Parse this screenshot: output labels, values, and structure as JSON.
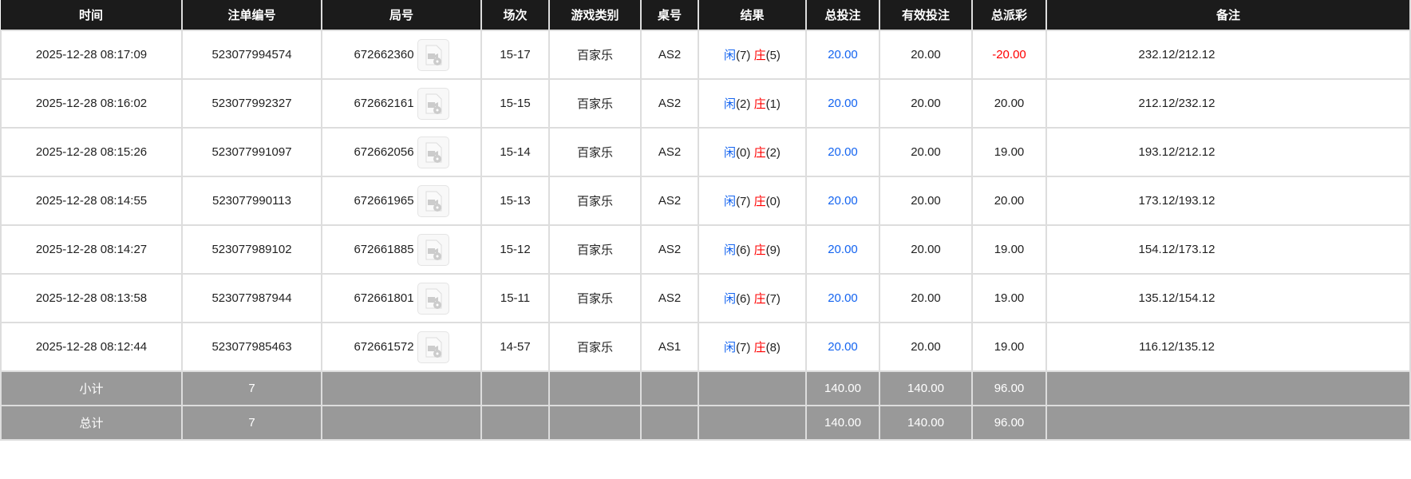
{
  "headers": [
    "时间",
    "注单编号",
    "局号",
    "场次",
    "游戏类别",
    "桌号",
    "结果",
    "总投注",
    "有效投注",
    "总派彩",
    "备注"
  ],
  "player_label": "闲",
  "banker_label": "庄",
  "rows": [
    {
      "time": "2025-12-28 08:17:09",
      "bet_id": "523077994574",
      "round": "672662360",
      "session": "15-17",
      "game": "百家乐",
      "table": "AS2",
      "player": "(7)",
      "banker": "(5)",
      "total_bet": "20.00",
      "valid_bet": "20.00",
      "payout": "-20.00",
      "payout_negative": true,
      "remark": "232.12/212.12"
    },
    {
      "time": "2025-12-28 08:16:02",
      "bet_id": "523077992327",
      "round": "672662161",
      "session": "15-15",
      "game": "百家乐",
      "table": "AS2",
      "player": "(2)",
      "banker": "(1)",
      "total_bet": "20.00",
      "valid_bet": "20.00",
      "payout": "20.00",
      "remark": "212.12/232.12"
    },
    {
      "time": "2025-12-28 08:15:26",
      "bet_id": "523077991097",
      "round": "672662056",
      "session": "15-14",
      "game": "百家乐",
      "table": "AS2",
      "player": "(0)",
      "banker": "(2)",
      "total_bet": "20.00",
      "valid_bet": "20.00",
      "payout": "19.00",
      "remark": "193.12/212.12"
    },
    {
      "time": "2025-12-28 08:14:55",
      "bet_id": "523077990113",
      "round": "672661965",
      "session": "15-13",
      "game": "百家乐",
      "table": "AS2",
      "player": "(7)",
      "banker": "(0)",
      "total_bet": "20.00",
      "valid_bet": "20.00",
      "payout": "20.00",
      "remark": "173.12/193.12"
    },
    {
      "time": "2025-12-28 08:14:27",
      "bet_id": "523077989102",
      "round": "672661885",
      "session": "15-12",
      "game": "百家乐",
      "table": "AS2",
      "player": "(6)",
      "banker": "(9)",
      "total_bet": "20.00",
      "valid_bet": "20.00",
      "payout": "19.00",
      "remark": "154.12/173.12"
    },
    {
      "time": "2025-12-28 08:13:58",
      "bet_id": "523077987944",
      "round": "672661801",
      "session": "15-11",
      "game": "百家乐",
      "table": "AS2",
      "player": "(6)",
      "banker": "(7)",
      "total_bet": "20.00",
      "valid_bet": "20.00",
      "payout": "19.00",
      "remark": "135.12/154.12"
    },
    {
      "time": "2025-12-28 08:12:44",
      "bet_id": "523077985463",
      "round": "672661572",
      "session": "14-57",
      "game": "百家乐",
      "table": "AS1",
      "player": "(7)",
      "banker": "(8)",
      "total_bet": "20.00",
      "valid_bet": "20.00",
      "payout": "19.00",
      "remark": "116.12/135.12"
    }
  ],
  "summary": [
    {
      "label": "小计",
      "count": "7",
      "total_bet": "140.00",
      "valid_bet": "140.00",
      "payout": "96.00"
    },
    {
      "label": "总计",
      "count": "7",
      "total_bet": "140.00",
      "valid_bet": "140.00",
      "payout": "96.00"
    }
  ],
  "colors": {
    "header_bg": "#1b1b1b",
    "player": "#1464f0",
    "banker": "#ff0000",
    "summary_bg": "#999999"
  },
  "icons": {
    "video": "video-replay-icon"
  }
}
